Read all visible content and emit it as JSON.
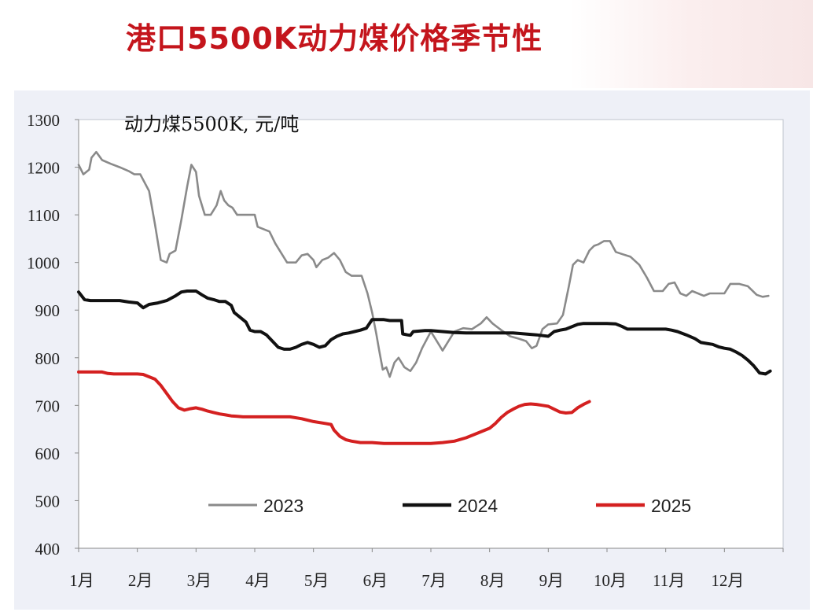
{
  "header": {
    "title": "港口5500K动力煤价格季节性"
  },
  "chart_data": {
    "type": "line",
    "title": "港口5500K动力煤价格季节性",
    "unit_label": "动力煤5500K, 元/吨",
    "xlabel": "",
    "ylabel": "",
    "x_range": [
      1,
      13
    ],
    "ylim": [
      400,
      1300
    ],
    "yticks": [
      400,
      500,
      600,
      700,
      800,
      900,
      1000,
      1100,
      1200,
      1300
    ],
    "months": [
      "1月",
      "2月",
      "3月",
      "4月",
      "5月",
      "6月",
      "7月",
      "8月",
      "9月",
      "10月",
      "11月",
      "12月"
    ],
    "legend_position": "bottom-inside",
    "series": [
      {
        "name": "2023",
        "color": "#8a8a8a",
        "points": [
          [
            1.0,
            1205
          ],
          [
            1.08,
            1185
          ],
          [
            1.18,
            1195
          ],
          [
            1.22,
            1220
          ],
          [
            1.3,
            1232
          ],
          [
            1.4,
            1215
          ],
          [
            1.55,
            1207
          ],
          [
            1.7,
            1200
          ],
          [
            1.85,
            1192
          ],
          [
            1.95,
            1185
          ],
          [
            2.05,
            1185
          ],
          [
            2.2,
            1150
          ],
          [
            2.3,
            1080
          ],
          [
            2.4,
            1005
          ],
          [
            2.5,
            1000
          ],
          [
            2.55,
            1018
          ],
          [
            2.65,
            1025
          ],
          [
            2.75,
            1090
          ],
          [
            2.85,
            1160
          ],
          [
            2.92,
            1205
          ],
          [
            3.0,
            1190
          ],
          [
            3.05,
            1140
          ],
          [
            3.15,
            1100
          ],
          [
            3.25,
            1100
          ],
          [
            3.35,
            1120
          ],
          [
            3.42,
            1150
          ],
          [
            3.48,
            1130
          ],
          [
            3.55,
            1120
          ],
          [
            3.62,
            1115
          ],
          [
            3.7,
            1100
          ],
          [
            3.85,
            1100
          ],
          [
            3.95,
            1100
          ],
          [
            4.0,
            1100
          ],
          [
            4.05,
            1075
          ],
          [
            4.15,
            1070
          ],
          [
            4.25,
            1065
          ],
          [
            4.35,
            1040
          ],
          [
            4.45,
            1020
          ],
          [
            4.55,
            1000
          ],
          [
            4.7,
            1000
          ],
          [
            4.8,
            1015
          ],
          [
            4.9,
            1018
          ],
          [
            5.0,
            1005
          ],
          [
            5.05,
            990
          ],
          [
            5.15,
            1005
          ],
          [
            5.25,
            1010
          ],
          [
            5.35,
            1020
          ],
          [
            5.45,
            1005
          ],
          [
            5.55,
            980
          ],
          [
            5.65,
            972
          ],
          [
            5.75,
            972
          ],
          [
            5.82,
            972
          ],
          [
            5.92,
            935
          ],
          [
            6.0,
            895
          ],
          [
            6.07,
            850
          ],
          [
            6.12,
            815
          ],
          [
            6.18,
            775
          ],
          [
            6.24,
            780
          ],
          [
            6.3,
            760
          ],
          [
            6.38,
            790
          ],
          [
            6.45,
            800
          ],
          [
            6.55,
            780
          ],
          [
            6.65,
            772
          ],
          [
            6.75,
            790
          ],
          [
            6.85,
            820
          ],
          [
            7.0,
            855
          ],
          [
            7.1,
            835
          ],
          [
            7.2,
            815
          ],
          [
            7.3,
            835
          ],
          [
            7.4,
            855
          ],
          [
            7.55,
            862
          ],
          [
            7.7,
            860
          ],
          [
            7.85,
            872
          ],
          [
            7.95,
            885
          ],
          [
            8.05,
            872
          ],
          [
            8.2,
            858
          ],
          [
            8.35,
            845
          ],
          [
            8.5,
            840
          ],
          [
            8.62,
            835
          ],
          [
            8.72,
            820
          ],
          [
            8.8,
            825
          ],
          [
            8.9,
            860
          ],
          [
            9.0,
            870
          ],
          [
            9.15,
            872
          ],
          [
            9.25,
            890
          ],
          [
            9.35,
            950
          ],
          [
            9.42,
            995
          ],
          [
            9.5,
            1005
          ],
          [
            9.6,
            1000
          ],
          [
            9.7,
            1025
          ],
          [
            9.78,
            1035
          ],
          [
            9.85,
            1038
          ],
          [
            9.95,
            1045
          ],
          [
            10.05,
            1045
          ],
          [
            10.15,
            1022
          ],
          [
            10.25,
            1018
          ],
          [
            10.4,
            1012
          ],
          [
            10.55,
            995
          ],
          [
            10.68,
            968
          ],
          [
            10.8,
            940
          ],
          [
            10.95,
            940
          ],
          [
            11.05,
            955
          ],
          [
            11.15,
            958
          ],
          [
            11.25,
            935
          ],
          [
            11.35,
            930
          ],
          [
            11.45,
            940
          ],
          [
            11.55,
            935
          ],
          [
            11.65,
            930
          ],
          [
            11.75,
            935
          ],
          [
            11.9,
            935
          ],
          [
            12.0,
            935
          ],
          [
            12.1,
            955
          ],
          [
            12.25,
            955
          ],
          [
            12.4,
            950
          ],
          [
            12.55,
            932
          ],
          [
            12.65,
            928
          ],
          [
            12.75,
            930
          ]
        ]
      },
      {
        "name": "2024",
        "color": "#111111",
        "points": [
          [
            1.0,
            938
          ],
          [
            1.1,
            922
          ],
          [
            1.2,
            920
          ],
          [
            1.35,
            920
          ],
          [
            1.5,
            920
          ],
          [
            1.7,
            920
          ],
          [
            1.85,
            917
          ],
          [
            2.0,
            915
          ],
          [
            2.1,
            905
          ],
          [
            2.2,
            912
          ],
          [
            2.35,
            915
          ],
          [
            2.5,
            920
          ],
          [
            2.65,
            930
          ],
          [
            2.75,
            938
          ],
          [
            2.85,
            940
          ],
          [
            3.0,
            940
          ],
          [
            3.1,
            932
          ],
          [
            3.2,
            925
          ],
          [
            3.3,
            922
          ],
          [
            3.4,
            918
          ],
          [
            3.5,
            918
          ],
          [
            3.6,
            910
          ],
          [
            3.65,
            895
          ],
          [
            3.75,
            885
          ],
          [
            3.85,
            875
          ],
          [
            3.92,
            858
          ],
          [
            4.0,
            855
          ],
          [
            4.1,
            855
          ],
          [
            4.2,
            848
          ],
          [
            4.3,
            835
          ],
          [
            4.4,
            822
          ],
          [
            4.5,
            818
          ],
          [
            4.6,
            818
          ],
          [
            4.7,
            822
          ],
          [
            4.8,
            828
          ],
          [
            4.9,
            832
          ],
          [
            5.0,
            828
          ],
          [
            5.1,
            822
          ],
          [
            5.2,
            825
          ],
          [
            5.3,
            838
          ],
          [
            5.4,
            845
          ],
          [
            5.5,
            850
          ],
          [
            5.6,
            852
          ],
          [
            5.7,
            855
          ],
          [
            5.8,
            858
          ],
          [
            5.9,
            862
          ],
          [
            6.0,
            880
          ],
          [
            6.1,
            880
          ],
          [
            6.2,
            880
          ],
          [
            6.3,
            878
          ],
          [
            6.4,
            878
          ],
          [
            6.5,
            878
          ],
          [
            6.52,
            850
          ],
          [
            6.6,
            848
          ],
          [
            6.65,
            847
          ],
          [
            6.7,
            855
          ],
          [
            6.8,
            856
          ],
          [
            6.9,
            857
          ],
          [
            7.0,
            857
          ],
          [
            7.2,
            855
          ],
          [
            7.4,
            853
          ],
          [
            7.6,
            852
          ],
          [
            7.8,
            852
          ],
          [
            8.0,
            852
          ],
          [
            8.2,
            852
          ],
          [
            8.4,
            852
          ],
          [
            8.6,
            850
          ],
          [
            8.8,
            848
          ],
          [
            9.0,
            845
          ],
          [
            9.1,
            855
          ],
          [
            9.2,
            858
          ],
          [
            9.3,
            860
          ],
          [
            9.4,
            865
          ],
          [
            9.5,
            870
          ],
          [
            9.6,
            872
          ],
          [
            9.8,
            872
          ],
          [
            10.0,
            872
          ],
          [
            10.15,
            871
          ],
          [
            10.25,
            866
          ],
          [
            10.35,
            860
          ],
          [
            10.5,
            860
          ],
          [
            10.7,
            860
          ],
          [
            10.9,
            860
          ],
          [
            11.0,
            860
          ],
          [
            11.1,
            858
          ],
          [
            11.2,
            855
          ],
          [
            11.35,
            848
          ],
          [
            11.5,
            840
          ],
          [
            11.6,
            832
          ],
          [
            11.7,
            830
          ],
          [
            11.8,
            828
          ],
          [
            11.9,
            823
          ],
          [
            12.0,
            820
          ],
          [
            12.1,
            818
          ],
          [
            12.2,
            812
          ],
          [
            12.3,
            805
          ],
          [
            12.4,
            795
          ],
          [
            12.5,
            783
          ],
          [
            12.6,
            768
          ],
          [
            12.7,
            766
          ],
          [
            12.78,
            772
          ]
        ]
      },
      {
        "name": "2025",
        "color": "#d42020",
        "points": [
          [
            1.0,
            770
          ],
          [
            1.2,
            770
          ],
          [
            1.4,
            770
          ],
          [
            1.5,
            767
          ],
          [
            1.6,
            766
          ],
          [
            1.8,
            766
          ],
          [
            2.0,
            766
          ],
          [
            2.1,
            765
          ],
          [
            2.2,
            760
          ],
          [
            2.3,
            755
          ],
          [
            2.4,
            742
          ],
          [
            2.5,
            725
          ],
          [
            2.6,
            708
          ],
          [
            2.7,
            695
          ],
          [
            2.8,
            690
          ],
          [
            2.9,
            693
          ],
          [
            3.0,
            695
          ],
          [
            3.1,
            692
          ],
          [
            3.2,
            688
          ],
          [
            3.3,
            685
          ],
          [
            3.4,
            682
          ],
          [
            3.5,
            680
          ],
          [
            3.6,
            678
          ],
          [
            3.7,
            677
          ],
          [
            3.8,
            676
          ],
          [
            4.0,
            676
          ],
          [
            4.2,
            676
          ],
          [
            4.4,
            676
          ],
          [
            4.6,
            676
          ],
          [
            4.8,
            672
          ],
          [
            5.0,
            666
          ],
          [
            5.2,
            662
          ],
          [
            5.3,
            660
          ],
          [
            5.35,
            648
          ],
          [
            5.45,
            635
          ],
          [
            5.55,
            628
          ],
          [
            5.65,
            625
          ],
          [
            5.8,
            622
          ],
          [
            6.0,
            622
          ],
          [
            6.2,
            620
          ],
          [
            6.4,
            620
          ],
          [
            6.6,
            620
          ],
          [
            6.8,
            620
          ],
          [
            7.0,
            620
          ],
          [
            7.2,
            622
          ],
          [
            7.4,
            625
          ],
          [
            7.6,
            632
          ],
          [
            7.8,
            642
          ],
          [
            8.0,
            652
          ],
          [
            8.1,
            662
          ],
          [
            8.2,
            675
          ],
          [
            8.3,
            685
          ],
          [
            8.4,
            692
          ],
          [
            8.5,
            698
          ],
          [
            8.6,
            702
          ],
          [
            8.7,
            703
          ],
          [
            8.8,
            702
          ],
          [
            8.9,
            700
          ],
          [
            9.0,
            698
          ],
          [
            9.1,
            692
          ],
          [
            9.2,
            686
          ],
          [
            9.3,
            684
          ],
          [
            9.4,
            685
          ],
          [
            9.5,
            695
          ],
          [
            9.6,
            702
          ],
          [
            9.7,
            708
          ]
        ]
      }
    ]
  }
}
